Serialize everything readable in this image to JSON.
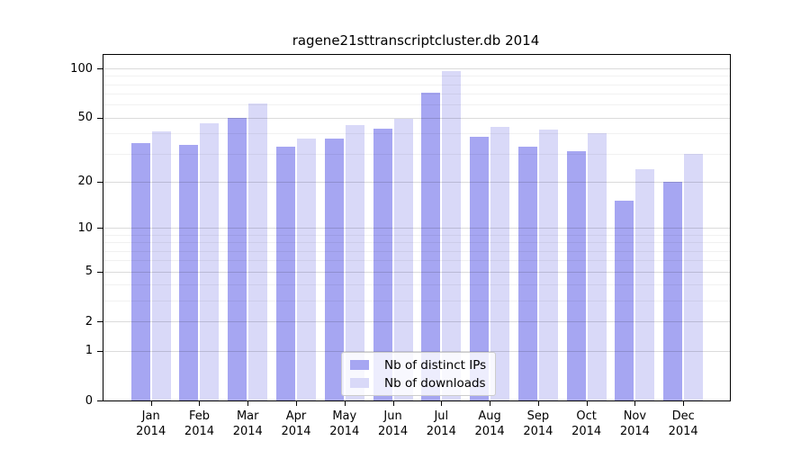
{
  "chart_data": {
    "type": "bar",
    "title": "ragene21sttranscriptcluster.db 2014",
    "categories": [
      "Jan",
      "Feb",
      "Mar",
      "Apr",
      "May",
      "Jun",
      "Jul",
      "Aug",
      "Sep",
      "Oct",
      "Nov",
      "Dec"
    ],
    "year_label": "2014",
    "series": [
      {
        "name": "Nb of distinct IPs",
        "color": "#a6a6f2",
        "values": [
          35,
          34,
          50,
          33,
          37,
          43,
          71,
          38,
          33,
          31,
          15,
          20
        ]
      },
      {
        "name": "Nb of downloads",
        "color": "#d9d9f8",
        "values": [
          41,
          46,
          61,
          37,
          45,
          49,
          97,
          44,
          42,
          40,
          24,
          30
        ]
      }
    ],
    "xlabel": "",
    "ylabel": "",
    "yscale": "log1p",
    "ylim": [
      0,
      121
    ],
    "yticks": [
      0,
      1,
      2,
      5,
      10,
      20,
      50,
      100
    ],
    "gridlines_major": [
      1,
      2,
      5,
      10,
      20,
      50,
      100
    ],
    "gridlines_minor": [
      3,
      4,
      6,
      7,
      8,
      9,
      30,
      40,
      60,
      70,
      80,
      90
    ],
    "grid": true,
    "legend_position": "inside-bottom-center",
    "colors": {
      "axis": "#000000",
      "grid_major": "rgba(0,0,0,0.14)",
      "grid_minor": "rgba(0,0,0,0.055)",
      "background": "#ffffff"
    }
  }
}
